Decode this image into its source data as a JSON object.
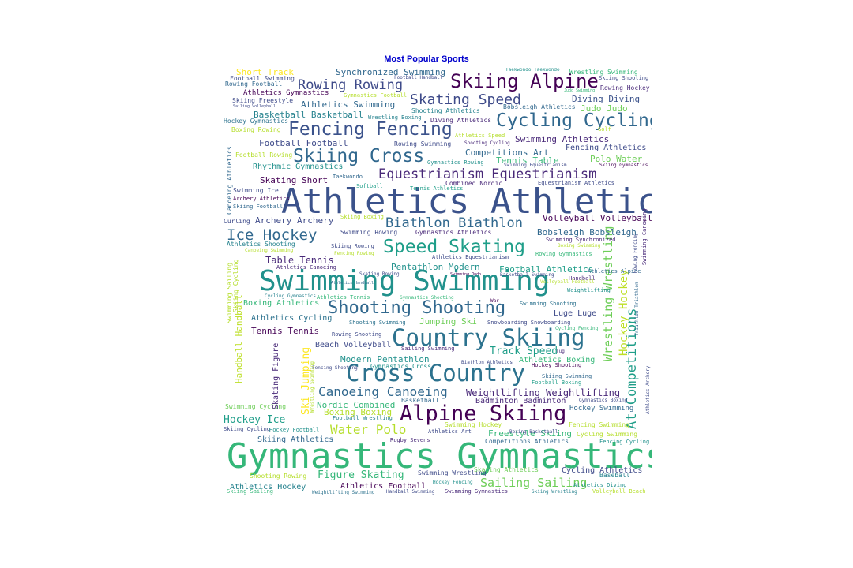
{
  "title": "Most Popular Sports",
  "title_color": "#0000cc",
  "palette": "viridis",
  "words": [
    {
      "t": "Athletics Athletics",
      "c": "#3b528b"
    },
    {
      "t": "Gymnastics Gymnastics",
      "c": "#35b779"
    },
    {
      "t": "Swimming Swimming",
      "c": "#21918c"
    },
    {
      "t": "Cross Country",
      "c": "#2c728e"
    },
    {
      "t": "Country Skiing",
      "c": "#2c728e"
    },
    {
      "t": "Alpine Skiing",
      "c": "#440154"
    },
    {
      "t": "Skiing Alpine",
      "c": "#440154"
    },
    {
      "t": "Fencing Fencing",
      "c": "#3b528b"
    },
    {
      "t": "Cycling Cycling",
      "c": "#31688e"
    },
    {
      "t": "Skiing Cross",
      "c": "#31688e"
    },
    {
      "t": "Equestrianism Equestrianism",
      "c": "#482878"
    },
    {
      "t": "Shooting Shooting",
      "c": "#31688e"
    },
    {
      "t": "Speed Skating",
      "c": "#1f9e89"
    },
    {
      "t": "Skating Speed",
      "c": "#3e4a89"
    },
    {
      "t": "Biathlon Biathlon",
      "c": "#31688e"
    },
    {
      "t": "Ice Hockey",
      "c": "#31688e"
    },
    {
      "t": "Rowing Rowing",
      "c": "#3e4a89"
    },
    {
      "t": "At Competitions",
      "c": "#1f9e89"
    },
    {
      "t": "Canoeing Canoeing",
      "c": "#31688e"
    },
    {
      "t": "Water Polo",
      "c": "#b5de2b"
    },
    {
      "t": "Sailing Sailing",
      "c": "#6ece58"
    },
    {
      "t": "Figure Skating",
      "c": "#35b779"
    },
    {
      "t": "Hockey Ice",
      "c": "#1f9e89"
    },
    {
      "t": "Track Speed",
      "c": "#1f9e89"
    },
    {
      "t": "Wrestling Wrestling",
      "c": "#6ece58"
    },
    {
      "t": "Hockey Hockey",
      "c": "#bddf26"
    },
    {
      "t": "Weightlifting Weightlifting",
      "c": "#482878"
    },
    {
      "t": "Synchronized Swimming",
      "c": "#31688e"
    },
    {
      "t": "Athletics Swimming",
      "c": "#31688e"
    },
    {
      "t": "Basketball Basketball",
      "c": "#26828e"
    },
    {
      "t": "Diving Diving",
      "c": "#3b528b"
    },
    {
      "t": "Judo Judo",
      "c": "#6ece58"
    },
    {
      "t": "Competitions Art",
      "c": "#31688e"
    },
    {
      "t": "Tennis Table",
      "c": "#35b779"
    },
    {
      "t": "Polo Water",
      "c": "#6ece58"
    },
    {
      "t": "Fencing Athletics",
      "c": "#3e4a89"
    },
    {
      "t": "Swimming Athletics",
      "c": "#482878"
    },
    {
      "t": "Football Football",
      "c": "#3e4a89"
    },
    {
      "t": "Rhythmic Gymnastics",
      "c": "#21918c"
    },
    {
      "t": "Skating Short",
      "c": "#440154"
    },
    {
      "t": "Archery Archery",
      "c": "#3e4a89"
    },
    {
      "t": "Volleyball Volleyball",
      "c": "#440154"
    },
    {
      "t": "Bobsleigh Bobsleigh",
      "c": "#31688e"
    },
    {
      "t": "Table Tennis",
      "c": "#482878"
    },
    {
      "t": "Pentathlon Modern",
      "c": "#21918c"
    },
    {
      "t": "Football Athletics",
      "c": "#1f9e89"
    },
    {
      "t": "Boxing Athletics",
      "c": "#35b779"
    },
    {
      "t": "Athletics Cycling",
      "c": "#2c728e"
    },
    {
      "t": "Jumping Ski",
      "c": "#6ece58"
    },
    {
      "t": "Luge Luge",
      "c": "#3e4a89"
    },
    {
      "t": "Tennis Tennis",
      "c": "#440154"
    },
    {
      "t": "Beach Volleyball",
      "c": "#3e4a89"
    },
    {
      "t": "Modern Pentathlon",
      "c": "#21918c"
    },
    {
      "t": "Athletics Boxing",
      "c": "#35b779"
    },
    {
      "t": "Badminton Badminton",
      "c": "#482878"
    },
    {
      "t": "Nordic Combined",
      "c": "#35b779"
    },
    {
      "t": "Boxing Boxing",
      "c": "#b5de2b"
    },
    {
      "t": "Freestyle Skiing",
      "c": "#35b779"
    },
    {
      "t": "Hockey Swimming",
      "c": "#31688e"
    },
    {
      "t": "Cycling Athletics",
      "c": "#3e4a89"
    },
    {
      "t": "Athletics Hockey",
      "c": "#26828e"
    },
    {
      "t": "Athletics Football",
      "c": "#440154"
    },
    {
      "t": "Short Track",
      "c": "#fde725"
    },
    {
      "t": "Football Swimming",
      "c": "#3e4a89"
    },
    {
      "t": "Rowing Football",
      "c": "#31688e"
    },
    {
      "t": "Athletics Gymnastics",
      "c": "#440154"
    },
    {
      "t": "Skiing Freestyle",
      "c": "#3e4a89"
    },
    {
      "t": "Hockey Gymnastics",
      "c": "#2c728e"
    },
    {
      "t": "Boxing Rowing",
      "c": "#b5de2b"
    },
    {
      "t": "Football Rowing",
      "c": "#b5de2b"
    },
    {
      "t": "Wrestling Swimming",
      "c": "#35b779"
    },
    {
      "t": "Skiing Shooting",
      "c": "#3e4a89"
    },
    {
      "t": "Rowing Hockey",
      "c": "#482878"
    },
    {
      "t": "Bobsleigh Athletics",
      "c": "#31688e"
    },
    {
      "t": "Shooting Athletics",
      "c": "#26828e"
    },
    {
      "t": "Diving Athletics",
      "c": "#482878"
    },
    {
      "t": "Wrestling Boxing",
      "c": "#26828e"
    },
    {
      "t": "Rowing Swimming",
      "c": "#3e4a89"
    },
    {
      "t": "Athletics Speed",
      "c": "#b5de2b"
    },
    {
      "t": "Shooting Cycling",
      "c": "#482878"
    },
    {
      "t": "Gymnastics Rowing",
      "c": "#21918c"
    },
    {
      "t": "Taekwondo",
      "c": "#31688e"
    },
    {
      "t": "Softball",
      "c": "#1f9e89"
    },
    {
      "t": "Combined Nordic",
      "c": "#482878"
    },
    {
      "t": "Tennis Athletics",
      "c": "#1f9e89"
    },
    {
      "t": "Equestrianism Athletics",
      "c": "#3e4a89"
    },
    {
      "t": "Swimming Ice",
      "c": "#3e4a89"
    },
    {
      "t": "Archery Athletics",
      "c": "#440154"
    },
    {
      "t": "Skiing Football",
      "c": "#31688e"
    },
    {
      "t": "Curling",
      "c": "#3e4a89"
    },
    {
      "t": "Skiing Boxing",
      "c": "#b5de2b"
    },
    {
      "t": "Swimming Rowing",
      "c": "#3e4a89"
    },
    {
      "t": "Gymnastics Athletics",
      "c": "#482878"
    },
    {
      "t": "Swimming Synchronized",
      "c": "#482878"
    },
    {
      "t": "Athletics Shooting",
      "c": "#26828e"
    },
    {
      "t": "Canoeing Swimming",
      "c": "#b5de2b"
    },
    {
      "t": "Skiing Rowing",
      "c": "#3e4a89"
    },
    {
      "t": "Fencing Rowing",
      "c": "#b5de2b"
    },
    {
      "t": "Athletics Equestrianism",
      "c": "#3e4a89"
    },
    {
      "t": "Rowing Gymnastics",
      "c": "#35b779"
    },
    {
      "t": "Boxing Swimming",
      "c": "#b5de2b"
    },
    {
      "t": "Athletics Canoeing",
      "c": "#482878"
    },
    {
      "t": "Skating Rowing",
      "c": "#3e4a89"
    },
    {
      "t": "Basketball Swimming",
      "c": "#3e4a89"
    },
    {
      "t": "Handball",
      "c": "#482878"
    },
    {
      "t": "Weightlifting",
      "c": "#21918c"
    },
    {
      "t": "Swimming Shooting",
      "c": "#2c728e"
    },
    {
      "t": "Shooting Swimming",
      "c": "#2c728e"
    },
    {
      "t": "Rowing Shooting",
      "c": "#3e4a89"
    },
    {
      "t": "Snowboarding Snowboarding",
      "c": "#3e4a89"
    },
    {
      "t": "Sailing Swimming",
      "c": "#482878"
    },
    {
      "t": "Hockey Shooting",
      "c": "#440154"
    },
    {
      "t": "Football Boxing",
      "c": "#1f9e89"
    },
    {
      "t": "Skiing Swimming",
      "c": "#31688e"
    },
    {
      "t": "Basketball",
      "c": "#31688e"
    },
    {
      "t": "Football Wrestling",
      "c": "#26828e"
    },
    {
      "t": "Athletics Art",
      "c": "#3e4a89"
    },
    {
      "t": "Rugby Sevens",
      "c": "#482878"
    },
    {
      "t": "Competitions Athletics",
      "c": "#31688e"
    },
    {
      "t": "Cycling Swimming",
      "c": "#b5de2b"
    },
    {
      "t": "Fencing Swimming",
      "c": "#b5de2b"
    },
    {
      "t": "Fencing Cycling",
      "c": "#21918c"
    },
    {
      "t": "Skiing Athletics",
      "c": "#31688e"
    },
    {
      "t": "Hockey Football",
      "c": "#21918c"
    },
    {
      "t": "Swimming Hockey",
      "c": "#b5de2b"
    },
    {
      "t": "Swimming Cycling",
      "c": "#6ece58"
    },
    {
      "t": "Skiing Cycling",
      "c": "#3e4a89"
    },
    {
      "t": "Shooting Rowing",
      "c": "#b5de2b"
    },
    {
      "t": "Swimming Wrestling",
      "c": "#3e4a89"
    },
    {
      "t": "Skating Athletics",
      "c": "#6ece58"
    },
    {
      "t": "Baseball",
      "c": "#26828e"
    },
    {
      "t": "Athletics Diving",
      "c": "#21918c"
    },
    {
      "t": "Volleyball Beach",
      "c": "#b5de2b"
    },
    {
      "t": "Swimming Gymnastics",
      "c": "#482878"
    },
    {
      "t": "Handball Swimming",
      "c": "#3e4a89"
    },
    {
      "t": "Weightlifting Swimming",
      "c": "#2c728e"
    },
    {
      "t": "Skiing Wrestling",
      "c": "#26828e"
    },
    {
      "t": "Skiing Sailing",
      "c": "#35b779"
    },
    {
      "t": "Hockey Fencing",
      "c": "#21918c"
    },
    {
      "t": "Golf",
      "c": "#b5de2b"
    },
    {
      "t": "Judo Swimming",
      "c": "#35b779"
    },
    {
      "t": "Taekwondo Taekwondo",
      "c": "#21918c"
    },
    {
      "t": "Gymnastics Football",
      "c": "#b5de2b"
    },
    {
      "t": "Football Handball",
      "c": "#3e4a89"
    },
    {
      "t": "Swimming Judo",
      "c": "#440154"
    },
    {
      "t": "Athletics Alpine",
      "c": "#31688e"
    },
    {
      "t": "Athletics Tennis",
      "c": "#35b779"
    },
    {
      "t": "Cycling Gymnastics",
      "c": "#26828e"
    },
    {
      "t": "Gymnastics Cross",
      "c": "#21918c"
    },
    {
      "t": "Gymnastics Shooting",
      "c": "#35b779"
    },
    {
      "t": "Biathlon Athletics",
      "c": "#3e4a89"
    },
    {
      "t": "Athletics Archery",
      "c": "#3e4a89"
    },
    {
      "t": "Boxing Basketball",
      "c": "#3e4a89"
    },
    {
      "t": "Gymnastics Boxing",
      "c": "#3e4a89"
    },
    {
      "t": "Cycling Fencing",
      "c": "#35b779"
    },
    {
      "t": "Swimming Equestrianism",
      "c": "#3e4a89"
    },
    {
      "t": "Skiing Gymnastics",
      "c": "#440154"
    },
    {
      "t": "Athletics Handball",
      "c": "#31688e"
    },
    {
      "t": "Volleyball Football",
      "c": "#b5de2b"
    },
    {
      "t": "Sailing Volleyball",
      "c": "#3e4a89"
    },
    {
      "t": "Fencing Shooting",
      "c": "#3e4a89"
    },
    {
      "t": "Tug",
      "c": "#482878"
    },
    {
      "t": "War",
      "c": "#440154"
    },
    {
      "t": "Skating Figure",
      "c": "#482878"
    },
    {
      "t": "Ski Jumping",
      "c": "#fde725"
    },
    {
      "t": "Handball Handball",
      "c": "#bddf26"
    },
    {
      "t": "Swimming Sailing",
      "c": "#b5de2b"
    },
    {
      "t": "Skiing Cycling",
      "c": "#b5de2b"
    },
    {
      "t": "Canoeing Athletics",
      "c": "#31688e"
    },
    {
      "t": "Wrestling Swimming",
      "c": "#b5de2b"
    },
    {
      "t": "Triathlon Triathlon",
      "c": "#31688e"
    },
    {
      "t": "Rowing Fencing",
      "c": "#3e4a89"
    },
    {
      "t": "Swimming Canoeing",
      "c": "#482878"
    }
  ]
}
